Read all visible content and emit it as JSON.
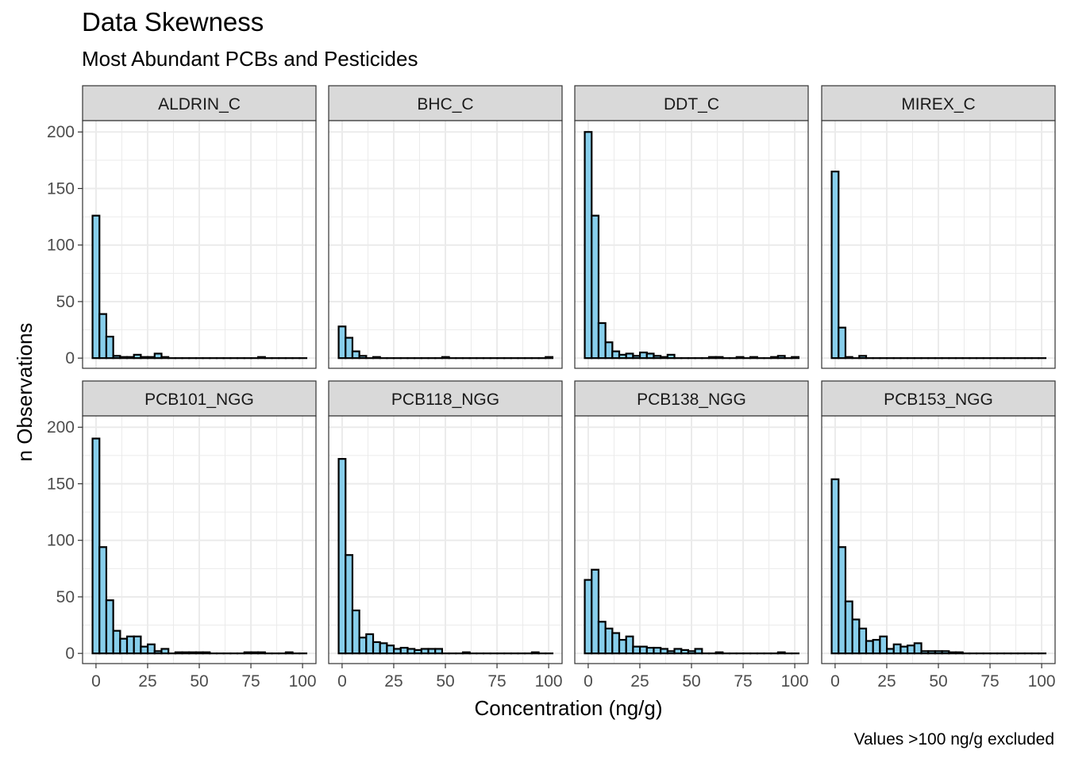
{
  "chart_data": {
    "type": "bar",
    "title": "Data Skewness",
    "subtitle": "Most Abundant PCBs and Pesticides",
    "xlabel": "Concentration (ng/g)",
    "ylabel": "n Observations",
    "caption": "Values >100 ng/g excluded",
    "xlim": [
      -6.5,
      106.5
    ],
    "ylim": [
      -9,
      210
    ],
    "xticks": [
      0,
      25,
      50,
      75,
      100
    ],
    "yticks": [
      0,
      50,
      100,
      150,
      200
    ],
    "bin_width": 3.34,
    "bin_centers": [
      0,
      3.34,
      6.68,
      10.02,
      13.36,
      16.7,
      20.04,
      23.38,
      26.72,
      30.06,
      33.4,
      36.74,
      40.08,
      43.42,
      46.76,
      50.1,
      53.44,
      56.78,
      60.12,
      63.46,
      66.8,
      70.14,
      73.48,
      76.82,
      80.16,
      83.5,
      86.84,
      90.18,
      93.52,
      96.86,
      100.2
    ],
    "grid": true,
    "bar_fill": "#87ceeb",
    "bar_stroke": "#000000",
    "strip_fill": "#d9d9d9",
    "grid_color": "#ebebeb",
    "panels": [
      {
        "name": "ALDRIN_C",
        "values": [
          126,
          39,
          19,
          2,
          1,
          1,
          3,
          1,
          1,
          4,
          1,
          0,
          0,
          0,
          0,
          0,
          0,
          0,
          0,
          0,
          0,
          0,
          0,
          0,
          1,
          0,
          0,
          0,
          0,
          0,
          0
        ]
      },
      {
        "name": "BHC_C",
        "values": [
          28,
          18,
          6,
          2,
          0,
          1,
          0,
          0,
          0,
          0,
          0,
          0,
          0,
          0,
          0,
          1,
          0,
          0,
          0,
          0,
          0,
          0,
          0,
          0,
          0,
          0,
          0,
          0,
          0,
          0,
          1
        ]
      },
      {
        "name": "DDT_C",
        "values": [
          200,
          126,
          31,
          14,
          6,
          3,
          4,
          2,
          5,
          4,
          2,
          1,
          3,
          0,
          0,
          0,
          0,
          0,
          1,
          1,
          0,
          0,
          1,
          0,
          1,
          0,
          0,
          1,
          2,
          0,
          1
        ]
      },
      {
        "name": "MIREX_C",
        "values": [
          165,
          27,
          1,
          0,
          2,
          0,
          0,
          0,
          0,
          0,
          0,
          0,
          0,
          0,
          0,
          0,
          0,
          0,
          0,
          0,
          0,
          0,
          0,
          0,
          0,
          0,
          0,
          0,
          0,
          0,
          0
        ]
      },
      {
        "name": "PCB101_NGG",
        "values": [
          190,
          94,
          47,
          20,
          13,
          15,
          15,
          6,
          8,
          2,
          4,
          0,
          1,
          1,
          1,
          1,
          1,
          0,
          0,
          0,
          0,
          0,
          1,
          1,
          1,
          0,
          0,
          0,
          1,
          0,
          0
        ]
      },
      {
        "name": "PCB118_NGG",
        "values": [
          172,
          87,
          38,
          14,
          17,
          10,
          9,
          7,
          4,
          5,
          4,
          3,
          4,
          4,
          4,
          0,
          0,
          0,
          1,
          0,
          0,
          0,
          0,
          0,
          0,
          0,
          0,
          0,
          1,
          0,
          0
        ]
      },
      {
        "name": "PCB138_NGG",
        "values": [
          65,
          74,
          28,
          22,
          18,
          12,
          15,
          6,
          6,
          5,
          5,
          4,
          2,
          4,
          3,
          2,
          4,
          0,
          0,
          1,
          0,
          0,
          0,
          0,
          0,
          0,
          0,
          0,
          1,
          0,
          0
        ]
      },
      {
        "name": "PCB153_NGG",
        "values": [
          154,
          94,
          46,
          30,
          22,
          11,
          12,
          15,
          4,
          8,
          6,
          7,
          9,
          2,
          2,
          2,
          2,
          1,
          1,
          0,
          0,
          0,
          0,
          0,
          0,
          0,
          0,
          0,
          0,
          0,
          0
        ]
      }
    ]
  }
}
